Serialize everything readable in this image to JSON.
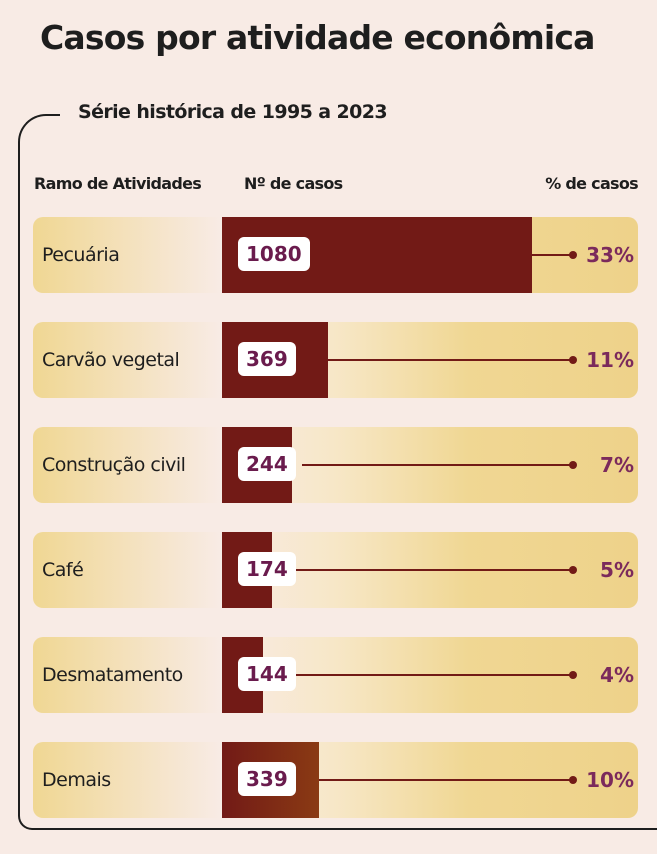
{
  "title": "Casos por atividade econômica",
  "subtitle": "Série histórica de 1995 a 2023",
  "headers": {
    "activity": "Ramo de Atividades",
    "count": "Nº de casos",
    "percent": "% de casos"
  },
  "colors": {
    "bar": "#721a16",
    "value_text": "#6a1b4d",
    "row_fill": "#f0d793",
    "background": "#f8ebe5"
  },
  "chart_data": {
    "type": "bar",
    "title": "Casos por atividade econômica",
    "subtitle": "Série histórica de 1995 a 2023",
    "categories": [
      "Pecuária",
      "Carvão vegetal",
      "Construção civil",
      "Café",
      "Desmatamento",
      "Demais"
    ],
    "values": [
      1080,
      369,
      244,
      174,
      144,
      339
    ],
    "value_labels": [
      "1080",
      "369",
      "244",
      "174",
      "144",
      "339"
    ],
    "percent_labels": [
      "33%",
      "11%",
      "7%",
      "5%",
      "4%",
      "10%"
    ],
    "percents": [
      33,
      11,
      7,
      5,
      4,
      10
    ],
    "xlim": [
      0,
      1080
    ],
    "orientation": "horizontal",
    "grid": false,
    "legend": "none"
  }
}
